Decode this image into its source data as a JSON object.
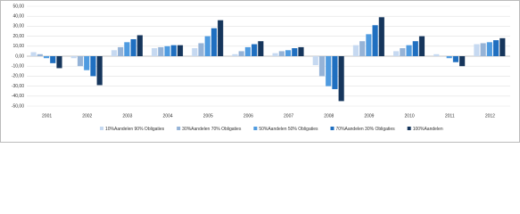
{
  "chart_data": {
    "type": "bar",
    "categories": [
      "2001",
      "2002",
      "2003",
      "2004",
      "2005",
      "2006",
      "2007",
      "2008",
      "2009",
      "2010",
      "2011",
      "2012"
    ],
    "series": [
      {
        "name": "10%Aandelen 90% Obligaties",
        "color": "#c6d9f1",
        "values": [
          4,
          -2,
          6,
          8,
          8,
          2,
          3,
          -9,
          11,
          5,
          2,
          12
        ]
      },
      {
        "name": "30%Aandelen 70% Obligaties",
        "color": "#95b3d7",
        "values": [
          2,
          -10,
          9,
          9,
          13,
          5,
          5,
          -20,
          15,
          8,
          0,
          13
        ]
      },
      {
        "name": "50%Aandelen 50% Obligaties",
        "color": "#4f9be0",
        "values": [
          -2,
          -14,
          14,
          10,
          20,
          9,
          6,
          -30,
          22,
          11,
          -2,
          14
        ]
      },
      {
        "name": "70%Aandelen 30% Obligaties",
        "color": "#1f6fc0",
        "values": [
          -7,
          -20,
          17,
          11,
          28,
          12,
          8,
          -33,
          31,
          15,
          -6,
          16
        ]
      },
      {
        "name": "100%Aandelen",
        "color": "#16365c",
        "values": [
          -12,
          -29,
          21,
          11,
          36,
          15,
          9,
          -45,
          39,
          20,
          -10,
          18
        ]
      }
    ],
    "ylim": [
      -50,
      50
    ],
    "yticks": [
      {
        "value": -50,
        "label": "-50,00"
      },
      {
        "value": -40,
        "label": "-40,00"
      },
      {
        "value": -30,
        "label": "-30,00"
      },
      {
        "value": -20,
        "label": "-20,00"
      },
      {
        "value": -10,
        "label": "-10,00"
      },
      {
        "value": 0,
        "label": "0,00"
      },
      {
        "value": 10,
        "label": "10,00"
      },
      {
        "value": 20,
        "label": "20,00"
      },
      {
        "value": 30,
        "label": "30,00"
      },
      {
        "value": 40,
        "label": "40,00"
      },
      {
        "value": 50,
        "label": "50,00"
      }
    ],
    "grid": true,
    "legend": "bottom"
  }
}
